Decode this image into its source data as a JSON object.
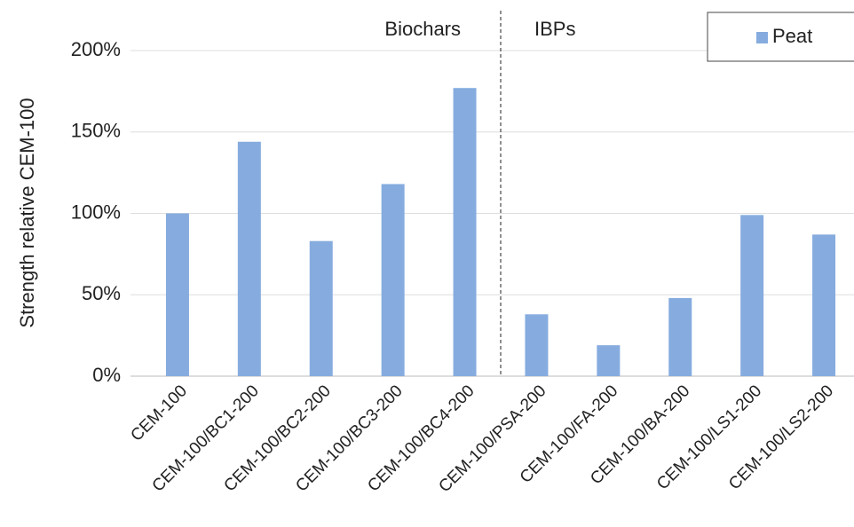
{
  "chart_data": {
    "type": "bar",
    "y_label": "Strength relative CEM-100",
    "categories": [
      "CEM-100",
      "CEM-100/BC1-200",
      "CEM-100/BC2-200",
      "CEM-100/BC3-200",
      "CEM-100/BC4-200",
      "CEM-100/PSA-200",
      "CEM-100/FA-200",
      "CEM-100/BA-200",
      "CEM-100/LS1-200",
      "CEM-100/LS2-200"
    ],
    "series": [
      {
        "name": "Peat",
        "color": "#86acdf",
        "values": [
          100,
          144,
          83,
          118,
          177,
          38,
          19,
          48,
          99,
          87
        ]
      }
    ],
    "annotations": [
      "Biochars",
      "IBPs"
    ],
    "ylim": [
      0,
      200
    ],
    "yticks": [
      {
        "value": 0,
        "label": "0%"
      },
      {
        "value": 50,
        "label": "50%"
      },
      {
        "value": 100,
        "label": "100%"
      },
      {
        "value": 150,
        "label": "150%"
      },
      {
        "value": 200,
        "label": "200%"
      }
    ],
    "grid": true,
    "legend": "top-right"
  }
}
